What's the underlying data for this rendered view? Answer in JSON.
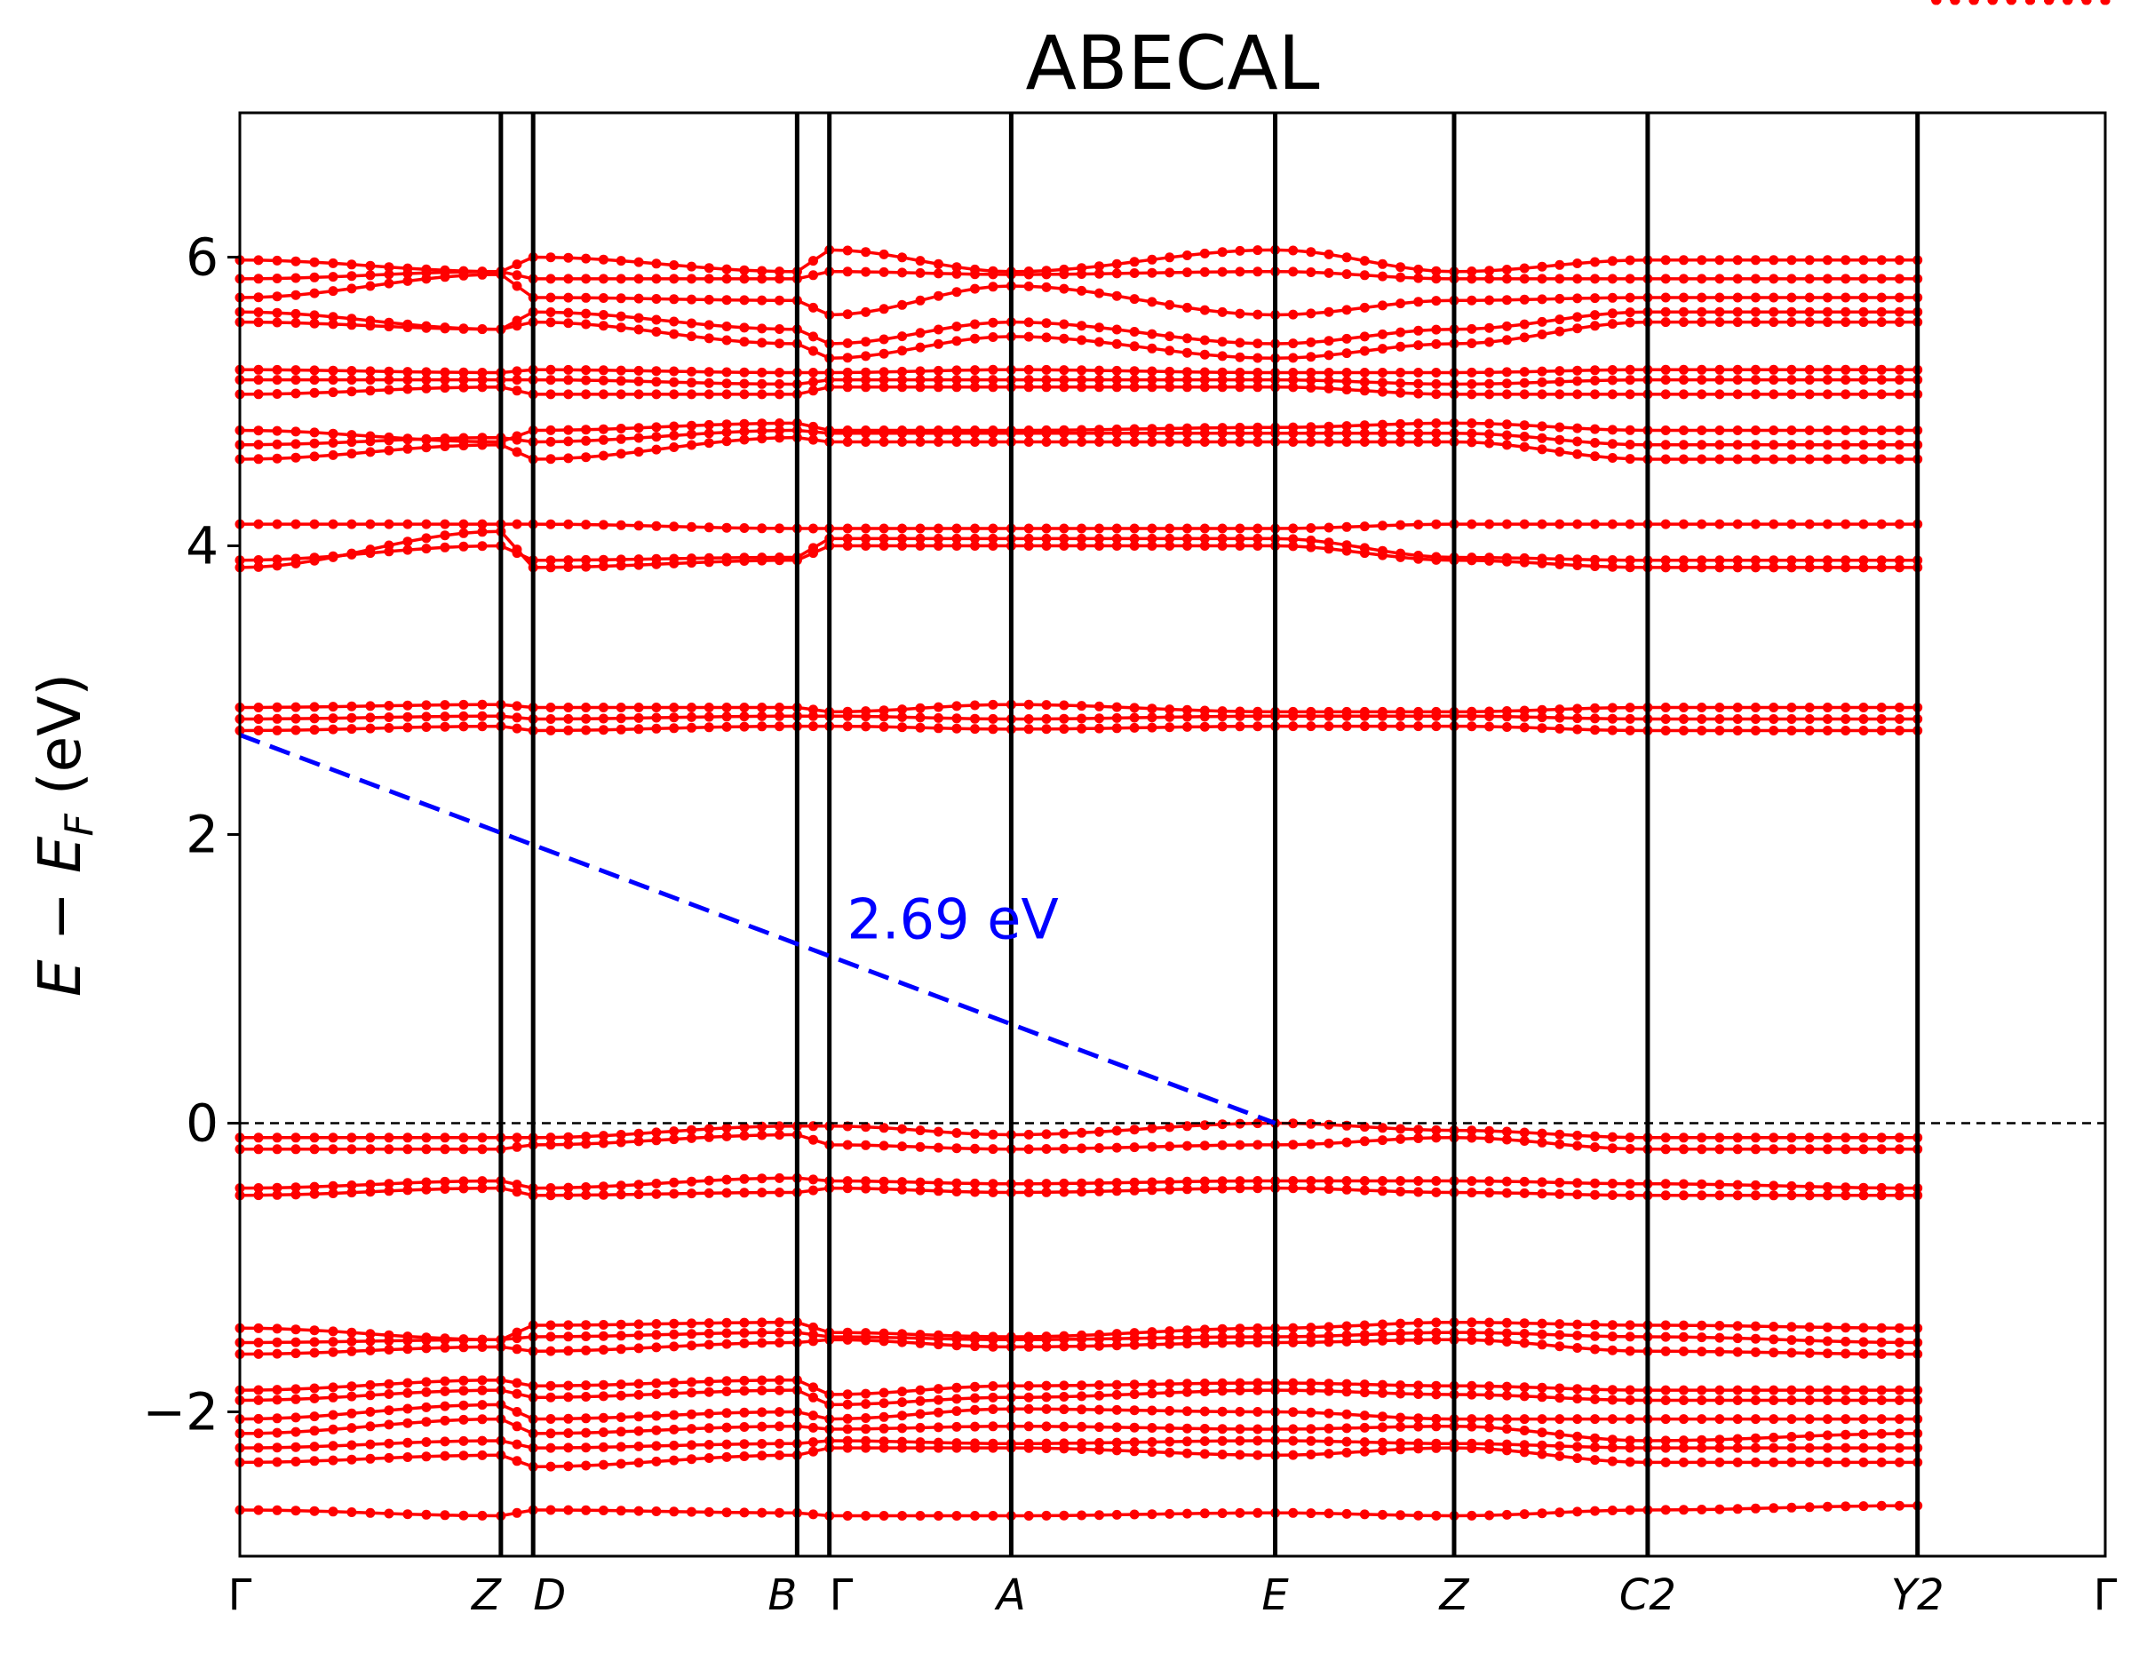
{
  "chart_data": {
    "type": "line",
    "title": "ABECAL",
    "ylabel": "E − E_F (eV)",
    "ylim": [
      -3.0,
      7.0
    ],
    "yticks": [
      -2,
      0,
      2,
      4,
      6
    ],
    "ytick_labels": [
      "−2",
      "0",
      "2",
      "4",
      "6"
    ],
    "x_range": [
      0.0,
      6.36
    ],
    "kpoints": [
      {
        "label": "Γ",
        "x": 0.0,
        "italic": false
      },
      {
        "label": "Z",
        "x": 0.89,
        "italic": true
      },
      {
        "label": "D",
        "x": 1.0,
        "italic": true
      },
      {
        "label": "B",
        "x": 1.9,
        "italic": true
      },
      {
        "label": "Γ",
        "x": 2.01,
        "italic": false
      },
      {
        "label": "A",
        "x": 2.63,
        "italic": true
      },
      {
        "label": "E",
        "x": 3.53,
        "italic": true
      },
      {
        "label": "Z",
        "x": 4.14,
        "italic": true
      },
      {
        "label": "C2",
        "x": 4.8,
        "italic": true
      },
      {
        "label": "Y2",
        "x": 5.72,
        "italic": true
      },
      {
        "label": "Γ",
        "x": 6.36,
        "italic": false
      }
    ],
    "band_color": "#ff0000",
    "fermi_level": 0.0,
    "bands": [
      {
        "name": "b1",
        "values": [
          -2.68,
          -2.72,
          -2.68,
          -2.7,
          -2.72,
          -2.72,
          -2.7,
          -2.72,
          -2.68,
          -2.65
        ]
      },
      {
        "name": "b2",
        "values": [
          -2.35,
          -2.3,
          -2.38,
          -2.3,
          -2.25,
          -2.25,
          -2.3,
          -2.25,
          -2.35,
          -2.35
        ]
      },
      {
        "name": "b3",
        "values": [
          -2.25,
          -2.2,
          -2.25,
          -2.22,
          -2.2,
          -2.22,
          -2.2,
          -2.22,
          -2.25,
          -2.25
        ]
      },
      {
        "name": "b4",
        "values": [
          -2.15,
          -2.05,
          -2.15,
          -2.1,
          -2.12,
          -2.1,
          -2.12,
          -2.1,
          -2.2,
          -2.15
        ]
      },
      {
        "name": "b5",
        "values": [
          -2.05,
          -1.95,
          -2.05,
          -2.0,
          -2.05,
          -1.98,
          -2.0,
          -2.05,
          -2.05,
          -2.05
        ]
      },
      {
        "name": "b6",
        "values": [
          -1.92,
          -1.85,
          -1.9,
          -1.85,
          -1.95,
          -1.9,
          -1.85,
          -1.88,
          -1.92,
          -1.92
        ]
      },
      {
        "name": "b7",
        "values": [
          -1.85,
          -1.78,
          -1.82,
          -1.78,
          -1.88,
          -1.82,
          -1.8,
          -1.82,
          -1.85,
          -1.85
        ]
      },
      {
        "name": "b8",
        "values": [
          -1.6,
          -1.55,
          -1.58,
          -1.52,
          -1.5,
          -1.55,
          -1.52,
          -1.5,
          -1.58,
          -1.6
        ]
      },
      {
        "name": "b9",
        "values": [
          -1.52,
          -1.5,
          -1.48,
          -1.45,
          -1.48,
          -1.5,
          -1.48,
          -1.45,
          -1.48,
          -1.52
        ]
      },
      {
        "name": "b10",
        "values": [
          -1.42,
          -1.5,
          -1.4,
          -1.38,
          -1.45,
          -1.48,
          -1.42,
          -1.38,
          -1.4,
          -1.42
        ]
      },
      {
        "name": "b11",
        "values": [
          -0.5,
          -0.45,
          -0.5,
          -0.48,
          -0.45,
          -0.48,
          -0.45,
          -0.48,
          -0.5,
          -0.5
        ]
      },
      {
        "name": "b12",
        "values": [
          -0.45,
          -0.4,
          -0.45,
          -0.38,
          -0.4,
          -0.42,
          -0.4,
          -0.4,
          -0.42,
          -0.45
        ]
      },
      {
        "name": "b13",
        "values": [
          -0.18,
          -0.18,
          -0.15,
          -0.08,
          -0.15,
          -0.18,
          -0.15,
          -0.1,
          -0.18,
          -0.18
        ]
      },
      {
        "name": "b14",
        "values": [
          -0.1,
          -0.1,
          -0.1,
          -0.02,
          -0.02,
          -0.08,
          0.0,
          -0.05,
          -0.1,
          -0.1
        ]
      },
      {
        "name": "b15",
        "values": [
          2.72,
          2.75,
          2.72,
          2.75,
          2.75,
          2.73,
          2.75,
          2.75,
          2.72,
          2.72
        ]
      },
      {
        "name": "b16",
        "values": [
          2.8,
          2.82,
          2.8,
          2.82,
          2.82,
          2.8,
          2.82,
          2.82,
          2.8,
          2.8
        ]
      },
      {
        "name": "b17",
        "values": [
          2.88,
          2.9,
          2.88,
          2.88,
          2.85,
          2.9,
          2.85,
          2.85,
          2.88,
          2.88
        ]
      },
      {
        "name": "b18",
        "values": [
          3.85,
          4.1,
          3.85,
          3.9,
          4.0,
          4.0,
          4.0,
          3.9,
          3.85,
          3.85
        ]
      },
      {
        "name": "b19",
        "values": [
          3.9,
          4.0,
          3.9,
          3.92,
          4.05,
          4.05,
          4.05,
          3.92,
          3.9,
          3.9
        ]
      },
      {
        "name": "b20",
        "values": [
          4.15,
          4.15,
          4.15,
          4.12,
          4.12,
          4.12,
          4.12,
          4.15,
          4.15,
          4.15
        ]
      },
      {
        "name": "b21",
        "values": [
          4.6,
          4.7,
          4.6,
          4.75,
          4.72,
          4.72,
          4.72,
          4.72,
          4.6,
          4.6
        ]
      },
      {
        "name": "b22",
        "values": [
          4.7,
          4.75,
          4.72,
          4.8,
          4.78,
          4.78,
          4.78,
          4.78,
          4.7,
          4.7
        ]
      },
      {
        "name": "b23",
        "values": [
          4.8,
          4.72,
          4.8,
          4.85,
          4.8,
          4.8,
          4.82,
          4.85,
          4.8,
          4.8
        ]
      },
      {
        "name": "b24",
        "values": [
          5.05,
          5.1,
          5.05,
          5.05,
          5.1,
          5.1,
          5.1,
          5.05,
          5.05,
          5.05
        ]
      },
      {
        "name": "b25",
        "values": [
          5.15,
          5.15,
          5.15,
          5.12,
          5.15,
          5.15,
          5.15,
          5.12,
          5.15,
          5.15
        ]
      },
      {
        "name": "b26",
        "values": [
          5.22,
          5.2,
          5.22,
          5.2,
          5.2,
          5.22,
          5.2,
          5.2,
          5.22,
          5.22
        ]
      },
      {
        "name": "b27",
        "values": [
          5.55,
          5.5,
          5.55,
          5.4,
          5.3,
          5.45,
          5.3,
          5.4,
          5.55,
          5.55
        ]
      },
      {
        "name": "b28",
        "values": [
          5.62,
          5.5,
          5.62,
          5.5,
          5.4,
          5.55,
          5.4,
          5.5,
          5.62,
          5.62
        ]
      },
      {
        "name": "b29",
        "values": [
          5.72,
          5.88,
          5.72,
          5.7,
          5.6,
          5.8,
          5.6,
          5.7,
          5.72,
          5.72
        ]
      },
      {
        "name": "b30",
        "values": [
          5.85,
          5.9,
          5.85,
          5.85,
          5.9,
          5.88,
          5.9,
          5.85,
          5.85,
          5.85
        ]
      },
      {
        "name": "b31",
        "values": [
          5.98,
          5.9,
          6.0,
          5.9,
          6.05,
          5.9,
          6.05,
          5.9,
          5.98,
          5.98
        ]
      }
    ],
    "gap_line": {
      "from": [
        0.0,
        2.69
      ],
      "to": [
        3.53,
        0.0
      ],
      "color": "#0000ff"
    },
    "gap_annotation": {
      "text": "2.69 eV",
      "x": 2.07,
      "y": 1.28
    }
  }
}
